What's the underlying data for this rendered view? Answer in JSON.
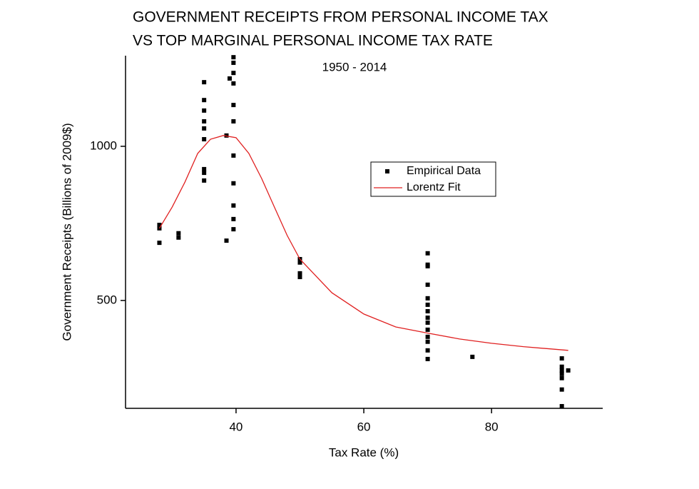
{
  "chart_data": {
    "type": "scatter",
    "title": [
      "GOVERNMENT RECEIPTS FROM PERSONAL INCOME TAX",
      "VS TOP MARGINAL PERSONAL INCOME TAX RATE"
    ],
    "subtitle": "1950 - 2014",
    "x_label": "Tax Rate (%)",
    "y_label": "Government Receipts (Billions of 2009$)",
    "xlim": [
      22.7,
      97.4
    ],
    "ylim": [
      150,
      1294
    ],
    "xticks": [
      40,
      60,
      80
    ],
    "yticks": [
      500,
      1000
    ],
    "legend": "upper right",
    "series": [
      {
        "name": "Empirical Data",
        "type": "scatter",
        "color": "#000000",
        "x": [
          28,
          28,
          28,
          31,
          31,
          35,
          35,
          35,
          35,
          35,
          35,
          35,
          35,
          35,
          38.5,
          38.5,
          39,
          39.6,
          39.6,
          39.6,
          39.6,
          39.6,
          39.6,
          39.6,
          39.6,
          39.6,
          39.6,
          39.6,
          50,
          50,
          50,
          50,
          70,
          70,
          70,
          70,
          70,
          70,
          70,
          70,
          70,
          70,
          70,
          70,
          70,
          70,
          77,
          91,
          91,
          91,
          91,
          91,
          91,
          91,
          92
        ],
        "values": [
          745,
          734,
          687,
          718,
          704,
          1208,
          1150,
          1116,
          1081,
          1058,
          1023,
          926,
          914,
          889,
          1035,
          694,
          1220,
          1289,
          1271,
          1238,
          1204,
          1134,
          1081,
          970,
          880,
          808,
          764,
          731,
          634,
          623,
          588,
          576,
          653,
          616,
          611,
          551,
          507,
          486,
          465,
          444,
          428,
          405,
          382,
          366,
          338,
          310,
          317,
          312,
          285,
          273,
          262,
          248,
          211,
          157,
          273
        ]
      },
      {
        "name": "Lorentz Fit",
        "type": "line",
        "color": "#e02020",
        "x": [
          28,
          30,
          32,
          34,
          36,
          38,
          40,
          42,
          44,
          46,
          48,
          50,
          55,
          60,
          65,
          70,
          75,
          80,
          85,
          92
        ],
        "values": [
          734,
          803,
          884,
          977,
          1023,
          1035,
          1028,
          977,
          896,
          803,
          711,
          634,
          525,
          456,
          414,
          394,
          375,
          361,
          350,
          338
        ]
      }
    ]
  }
}
